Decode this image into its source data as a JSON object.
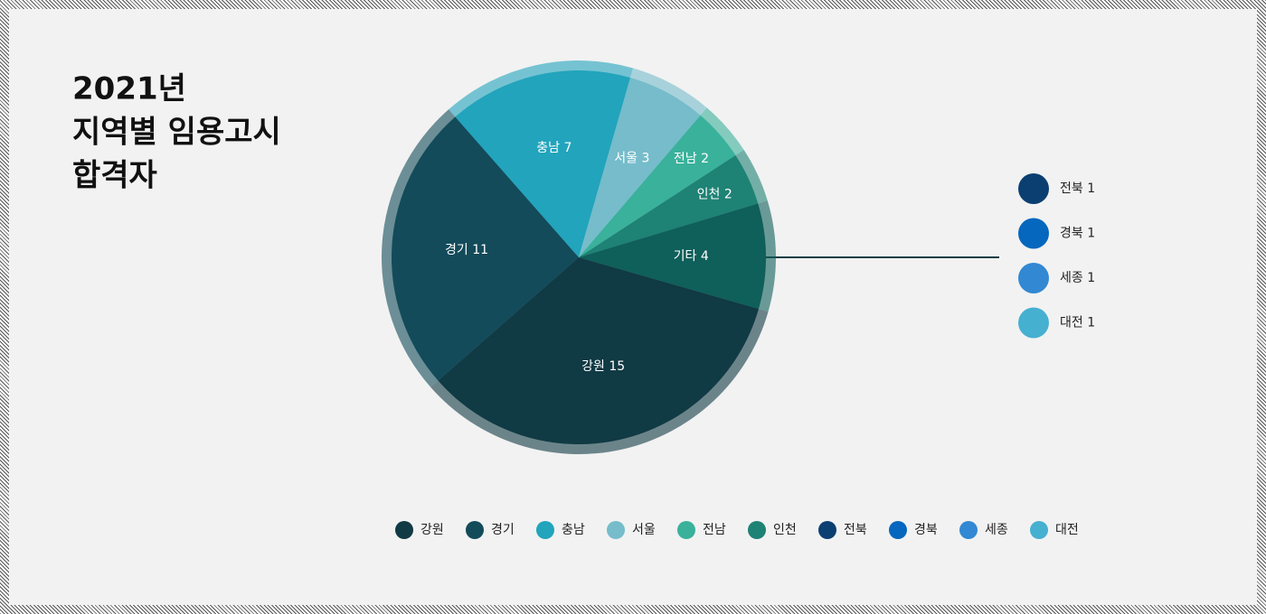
{
  "chart_data": {
    "type": "pie",
    "title": [
      "2021년",
      "지역별 임용고시",
      "합격자"
    ],
    "categories": [
      "강원",
      "경기",
      "충남",
      "서울",
      "전남",
      "인천",
      "기타"
    ],
    "values": [
      15,
      11,
      7,
      3,
      2,
      2,
      4
    ],
    "colors": [
      "#103a44",
      "#134b5a",
      "#22a4bc",
      "#76bccb",
      "#3ab19b",
      "#1e8275",
      "#0f5f5a"
    ],
    "breakdown": {
      "categories": [
        "전북",
        "경북",
        "세종",
        "대전"
      ],
      "values": [
        1,
        1,
        1,
        1
      ],
      "colors": [
        "#0c3f71",
        "#0567bd",
        "#3288d2",
        "#46b0d1"
      ]
    },
    "legend": {
      "names": [
        "강원",
        "경기",
        "충남",
        "서울",
        "전남",
        "인천",
        "전북",
        "경북",
        "세종",
        "대전"
      ],
      "colors": [
        "#103a44",
        "#134b5a",
        "#22a4bc",
        "#76bccb",
        "#3ab19b",
        "#1e8275",
        "#0c3f71",
        "#0567bd",
        "#3288d2",
        "#46b0d1"
      ]
    }
  }
}
